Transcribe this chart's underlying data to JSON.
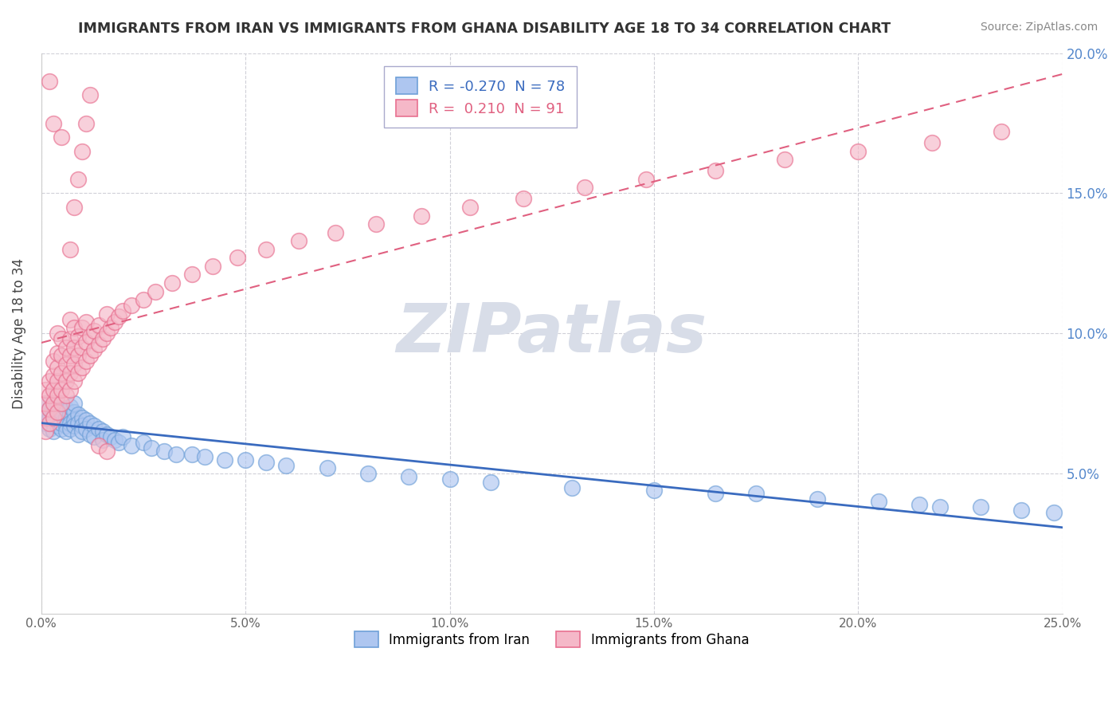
{
  "title": "IMMIGRANTS FROM IRAN VS IMMIGRANTS FROM GHANA DISABILITY AGE 18 TO 34 CORRELATION CHART",
  "source": "Source: ZipAtlas.com",
  "ylabel": "Disability Age 18 to 34",
  "xmin": 0.0,
  "xmax": 0.25,
  "ymin": 0.0,
  "ymax": 0.2,
  "iran_R": -0.27,
  "iran_N": 78,
  "ghana_R": 0.21,
  "ghana_N": 91,
  "iran_color": "#aec6f0",
  "ghana_color": "#f5b8c8",
  "iran_edge_color": "#6fa0d8",
  "ghana_edge_color": "#e87090",
  "iran_line_color": "#3a6bbf",
  "ghana_line_color": "#e06080",
  "right_axis_color": "#5588cc",
  "watermark_color": "#d8dde8",
  "watermark": "ZIPatlas",
  "legend_iran": "Immigrants from Iran",
  "legend_ghana": "Immigrants from Ghana",
  "iran_label": "R = -0.270  N = 78",
  "ghana_label": "R =  0.210  N = 91",
  "iran_scatter_x": [
    0.001,
    0.001,
    0.001,
    0.002,
    0.002,
    0.002,
    0.003,
    0.003,
    0.003,
    0.003,
    0.004,
    0.004,
    0.004,
    0.004,
    0.005,
    0.005,
    0.005,
    0.005,
    0.005,
    0.006,
    0.006,
    0.006,
    0.006,
    0.007,
    0.007,
    0.007,
    0.007,
    0.008,
    0.008,
    0.008,
    0.008,
    0.009,
    0.009,
    0.009,
    0.01,
    0.01,
    0.01,
    0.011,
    0.011,
    0.012,
    0.012,
    0.013,
    0.013,
    0.014,
    0.015,
    0.015,
    0.016,
    0.017,
    0.018,
    0.019,
    0.02,
    0.022,
    0.025,
    0.027,
    0.03,
    0.033,
    0.037,
    0.04,
    0.045,
    0.05,
    0.055,
    0.06,
    0.07,
    0.08,
    0.09,
    0.1,
    0.11,
    0.13,
    0.15,
    0.165,
    0.175,
    0.19,
    0.205,
    0.215,
    0.22,
    0.23,
    0.24,
    0.248
  ],
  "iran_scatter_y": [
    0.068,
    0.072,
    0.075,
    0.07,
    0.073,
    0.066,
    0.071,
    0.068,
    0.074,
    0.065,
    0.072,
    0.069,
    0.075,
    0.067,
    0.073,
    0.07,
    0.066,
    0.068,
    0.072,
    0.07,
    0.067,
    0.073,
    0.065,
    0.071,
    0.068,
    0.074,
    0.066,
    0.072,
    0.069,
    0.075,
    0.067,
    0.071,
    0.068,
    0.064,
    0.07,
    0.067,
    0.065,
    0.069,
    0.066,
    0.068,
    0.064,
    0.067,
    0.063,
    0.066,
    0.065,
    0.062,
    0.064,
    0.063,
    0.062,
    0.061,
    0.063,
    0.06,
    0.061,
    0.059,
    0.058,
    0.057,
    0.057,
    0.056,
    0.055,
    0.055,
    0.054,
    0.053,
    0.052,
    0.05,
    0.049,
    0.048,
    0.047,
    0.045,
    0.044,
    0.043,
    0.043,
    0.041,
    0.04,
    0.039,
    0.038,
    0.038,
    0.037,
    0.036
  ],
  "ghana_scatter_x": [
    0.001,
    0.001,
    0.001,
    0.001,
    0.002,
    0.002,
    0.002,
    0.002,
    0.003,
    0.003,
    0.003,
    0.003,
    0.003,
    0.004,
    0.004,
    0.004,
    0.004,
    0.004,
    0.004,
    0.005,
    0.005,
    0.005,
    0.005,
    0.005,
    0.006,
    0.006,
    0.006,
    0.006,
    0.007,
    0.007,
    0.007,
    0.007,
    0.007,
    0.008,
    0.008,
    0.008,
    0.008,
    0.009,
    0.009,
    0.009,
    0.01,
    0.01,
    0.01,
    0.011,
    0.011,
    0.011,
    0.012,
    0.012,
    0.013,
    0.013,
    0.014,
    0.014,
    0.015,
    0.016,
    0.016,
    0.017,
    0.018,
    0.019,
    0.02,
    0.022,
    0.025,
    0.028,
    0.032,
    0.037,
    0.042,
    0.048,
    0.055,
    0.063,
    0.072,
    0.082,
    0.093,
    0.105,
    0.118,
    0.133,
    0.148,
    0.165,
    0.182,
    0.2,
    0.218,
    0.235,
    0.007,
    0.008,
    0.009,
    0.01,
    0.011,
    0.012,
    0.014,
    0.016,
    0.003,
    0.005,
    0.002
  ],
  "ghana_scatter_y": [
    0.065,
    0.07,
    0.075,
    0.08,
    0.068,
    0.073,
    0.078,
    0.083,
    0.07,
    0.075,
    0.08,
    0.085,
    0.09,
    0.072,
    0.078,
    0.083,
    0.088,
    0.093,
    0.1,
    0.075,
    0.08,
    0.086,
    0.092,
    0.098,
    0.078,
    0.083,
    0.089,
    0.095,
    0.08,
    0.086,
    0.092,
    0.098,
    0.105,
    0.083,
    0.089,
    0.095,
    0.102,
    0.086,
    0.092,
    0.099,
    0.088,
    0.095,
    0.102,
    0.09,
    0.097,
    0.104,
    0.092,
    0.099,
    0.094,
    0.101,
    0.096,
    0.103,
    0.098,
    0.1,
    0.107,
    0.102,
    0.104,
    0.106,
    0.108,
    0.11,
    0.112,
    0.115,
    0.118,
    0.121,
    0.124,
    0.127,
    0.13,
    0.133,
    0.136,
    0.139,
    0.142,
    0.145,
    0.148,
    0.152,
    0.155,
    0.158,
    0.162,
    0.165,
    0.168,
    0.172,
    0.13,
    0.145,
    0.155,
    0.165,
    0.175,
    0.185,
    0.06,
    0.058,
    0.175,
    0.17,
    0.19
  ]
}
